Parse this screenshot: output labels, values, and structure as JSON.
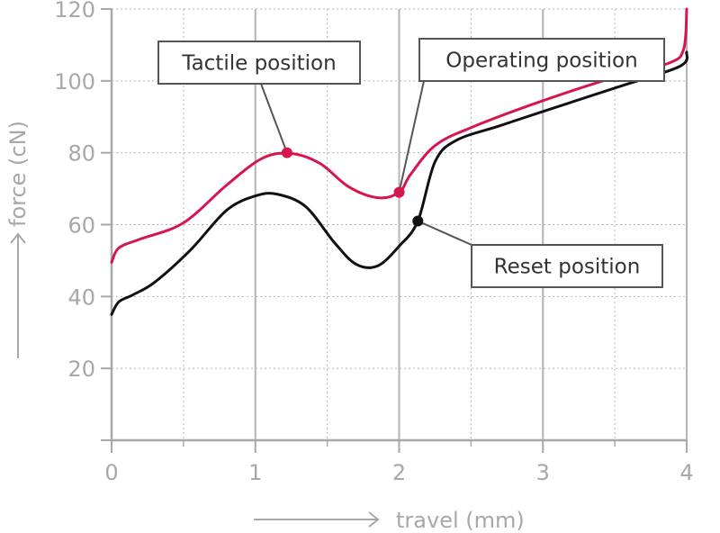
{
  "chart_data": {
    "type": "line",
    "title": "",
    "xlabel": "travel (mm)",
    "ylabel": "force (cN)",
    "xlim": [
      0,
      4
    ],
    "ylim": [
      0,
      120
    ],
    "xticks": [
      0,
      1,
      2,
      3,
      4
    ],
    "yticks": [
      20,
      40,
      60,
      80,
      100,
      120
    ],
    "grid": true,
    "series": [
      {
        "name": "",
        "color": "#d6164f",
        "x": [
          0,
          0.05,
          0.2,
          0.5,
          0.8,
          1.05,
          1.25,
          1.45,
          1.65,
          1.85,
          2.0,
          2.08,
          2.25,
          2.5,
          3.0,
          3.5,
          3.88,
          3.98,
          4.0
        ],
        "y": [
          49.5,
          53.5,
          56,
          60.5,
          71,
          78.5,
          79.8,
          77,
          70.5,
          67.5,
          69,
          74,
          82,
          87,
          94.5,
          101,
          105,
          109,
          120
        ]
      },
      {
        "name": "",
        "color": "#111111",
        "x": [
          0,
          0.05,
          0.15,
          0.3,
          0.55,
          0.8,
          1.0,
          1.15,
          1.35,
          1.55,
          1.7,
          1.85,
          2.0,
          2.13,
          2.25,
          2.4,
          2.7,
          3.0,
          3.5,
          3.95,
          4.0
        ],
        "y": [
          35,
          38.5,
          40.5,
          44,
          53,
          64,
          68,
          68.5,
          65,
          55,
          49,
          48.5,
          54,
          61,
          77.5,
          83.5,
          87.5,
          91.5,
          98,
          104,
          108
        ]
      }
    ],
    "annotations": [
      {
        "label": "Tactile position",
        "series": 0,
        "x": 1.22,
        "y": 80
      },
      {
        "label": "Operating position",
        "series": 0,
        "x": 2.0,
        "y": 69
      },
      {
        "label": "Reset position",
        "series": 1,
        "x": 2.13,
        "y": 61
      }
    ]
  }
}
